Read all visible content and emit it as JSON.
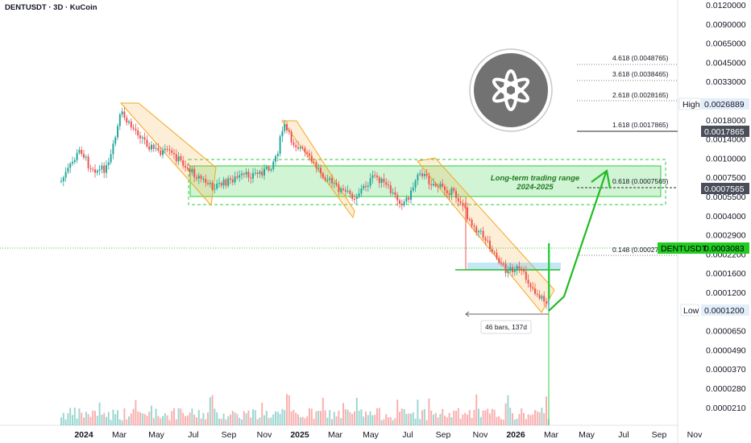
{
  "chart_title": "DENTUSDT · 3D · KuCoin",
  "colors": {
    "up": "#26a69a",
    "down": "#ef5350",
    "range": "#2ecc40",
    "channel": "#f5a623",
    "arrow": "#22bb22",
    "axis_text": "#131722"
  },
  "y_axis_ticks": [
    "0.0120000",
    "0.0090000",
    "0.0065000",
    "0.0045000",
    "0.0033000",
    "0.0024000",
    "0.0018000",
    "0.0014000",
    "0.0010000",
    "0.0007500",
    "0.0005500",
    "0.0004000",
    "0.0002900",
    "0.0002200",
    "0.0001600",
    "0.0001200",
    "0.0000900",
    "0.0000650",
    "0.0000490",
    "0.0000370",
    "0.0000280",
    "0.0000210"
  ],
  "x_axis_ticks": [
    {
      "label": "2024",
      "bold": true
    },
    {
      "label": "Mar",
      "bold": false
    },
    {
      "label": "May",
      "bold": false
    },
    {
      "label": "Jul",
      "bold": false
    },
    {
      "label": "Sep",
      "bold": false
    },
    {
      "label": "Nov",
      "bold": false
    },
    {
      "label": "2025",
      "bold": true
    },
    {
      "label": "Mar",
      "bold": false
    },
    {
      "label": "May",
      "bold": false
    },
    {
      "label": "Jul",
      "bold": false
    },
    {
      "label": "Sep",
      "bold": false
    },
    {
      "label": "Nov",
      "bold": false
    },
    {
      "label": "2026",
      "bold": true
    },
    {
      "label": "Mar",
      "bold": false
    },
    {
      "label": "May",
      "bold": false
    },
    {
      "label": "Jul",
      "bold": false
    },
    {
      "label": "Sep",
      "bold": false
    },
    {
      "label": "Nov",
      "bold": false
    }
  ],
  "fib_levels": [
    {
      "label": "4.618 (0.0048765)",
      "value": 0.0048765
    },
    {
      "label": "3.618 (0.0038465)",
      "value": 0.0038465
    },
    {
      "label": "2.618 (0.0028165)",
      "value": 0.0028165
    },
    {
      "label": "1.618 (0.0017865)",
      "value": 0.0017865
    },
    {
      "label": "0.618 (0.0007565)",
      "value": 0.0007565
    },
    {
      "label": "0.148 (0.00027",
      "value": 0.00027
    }
  ],
  "price_tags": {
    "high_label": "High",
    "high_value": "0.0026889",
    "fib_1618_value": "0.0017865",
    "fib_0618_value": "0.0007565",
    "current_label": "DENTUSDT",
    "current_value": "0.0003083",
    "low_label": "Low",
    "low_value": "0.0001200"
  },
  "annotations": {
    "range_line1": "Long-term trading range",
    "range_line2": "2024-2025",
    "bars_label": "46 bars, 137d"
  },
  "chart_data": {
    "type": "candlestick",
    "symbol": "DENTUSDT",
    "timeframe": "3D",
    "exchange": "KuCoin",
    "y_scale": "log",
    "ylim": [
      2.1e-05,
      0.012
    ],
    "x_range": [
      "2023-12",
      "2026-11"
    ],
    "last_price": 0.0003083,
    "high": 0.0026889,
    "low": 0.00012,
    "trading_range": {
      "label": "Long-term trading range 2024-2025",
      "upper": 0.00105,
      "lower": 0.00062
    },
    "fib_extensions": [
      0.0048765,
      0.0038465,
      0.0028165,
      0.0017865,
      0.0007565,
      0.00027
    ],
    "measure": {
      "bars": 46,
      "days": 137
    }
  }
}
